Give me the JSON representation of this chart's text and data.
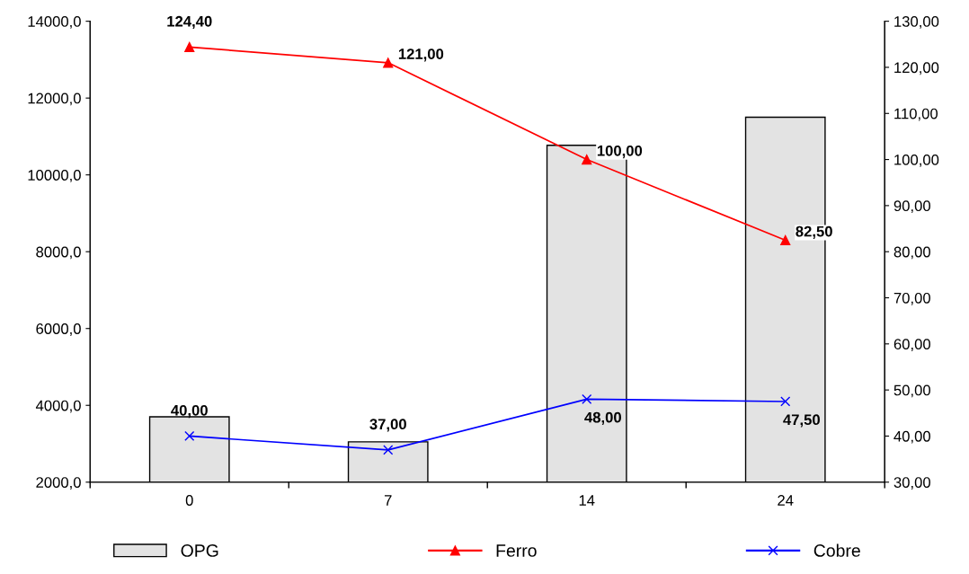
{
  "chart_data": {
    "type": "bar",
    "categories": [
      "0",
      "7",
      "14",
      "24"
    ],
    "series": [
      {
        "name": "OPG",
        "color": "#e3e3e3",
        "values": [
          3700,
          3050,
          10770,
          11500
        ]
      },
      {
        "name": "Ferro",
        "type": "line",
        "axis": "y2",
        "color": "#ff0000",
        "marker": "triangle",
        "values": [
          124.4,
          121.0,
          100.0,
          82.5
        ],
        "value_labels": [
          "124,40",
          "121,00",
          "100,00",
          "82,50"
        ]
      },
      {
        "name": "Cobre",
        "type": "line",
        "axis": "y2",
        "color": "#0000ff",
        "marker": "cross",
        "values": [
          40.0,
          37.0,
          48.0,
          47.5
        ],
        "value_labels": [
          "40,00",
          "37,00",
          "48,00",
          "47,50"
        ]
      }
    ],
    "ylim": [
      2000,
      14000
    ],
    "yticks": [
      {
        "value": 2000,
        "label": "2000,0"
      },
      {
        "value": 4000,
        "label": "4000,0"
      },
      {
        "value": 6000,
        "label": "6000,0"
      },
      {
        "value": 8000,
        "label": "8000,0"
      },
      {
        "value": 10000,
        "label": "10000,0"
      },
      {
        "value": 12000,
        "label": "12000,0"
      },
      {
        "value": 14000,
        "label": "14000,0"
      }
    ],
    "y2lim": [
      30,
      130
    ],
    "y2ticks": [
      {
        "value": 30,
        "label": "30,00"
      },
      {
        "value": 40,
        "label": "40,00"
      },
      {
        "value": 50,
        "label": "50,00"
      },
      {
        "value": 60,
        "label": "60,00"
      },
      {
        "value": 70,
        "label": "70,00"
      },
      {
        "value": 80,
        "label": "80,00"
      },
      {
        "value": 90,
        "label": "90,00"
      },
      {
        "value": 100,
        "label": "100,00"
      },
      {
        "value": 110,
        "label": "110,00"
      },
      {
        "value": 120,
        "label": "120,00"
      },
      {
        "value": 130,
        "label": "130,00"
      }
    ],
    "legend": "bottom",
    "grid": false
  }
}
